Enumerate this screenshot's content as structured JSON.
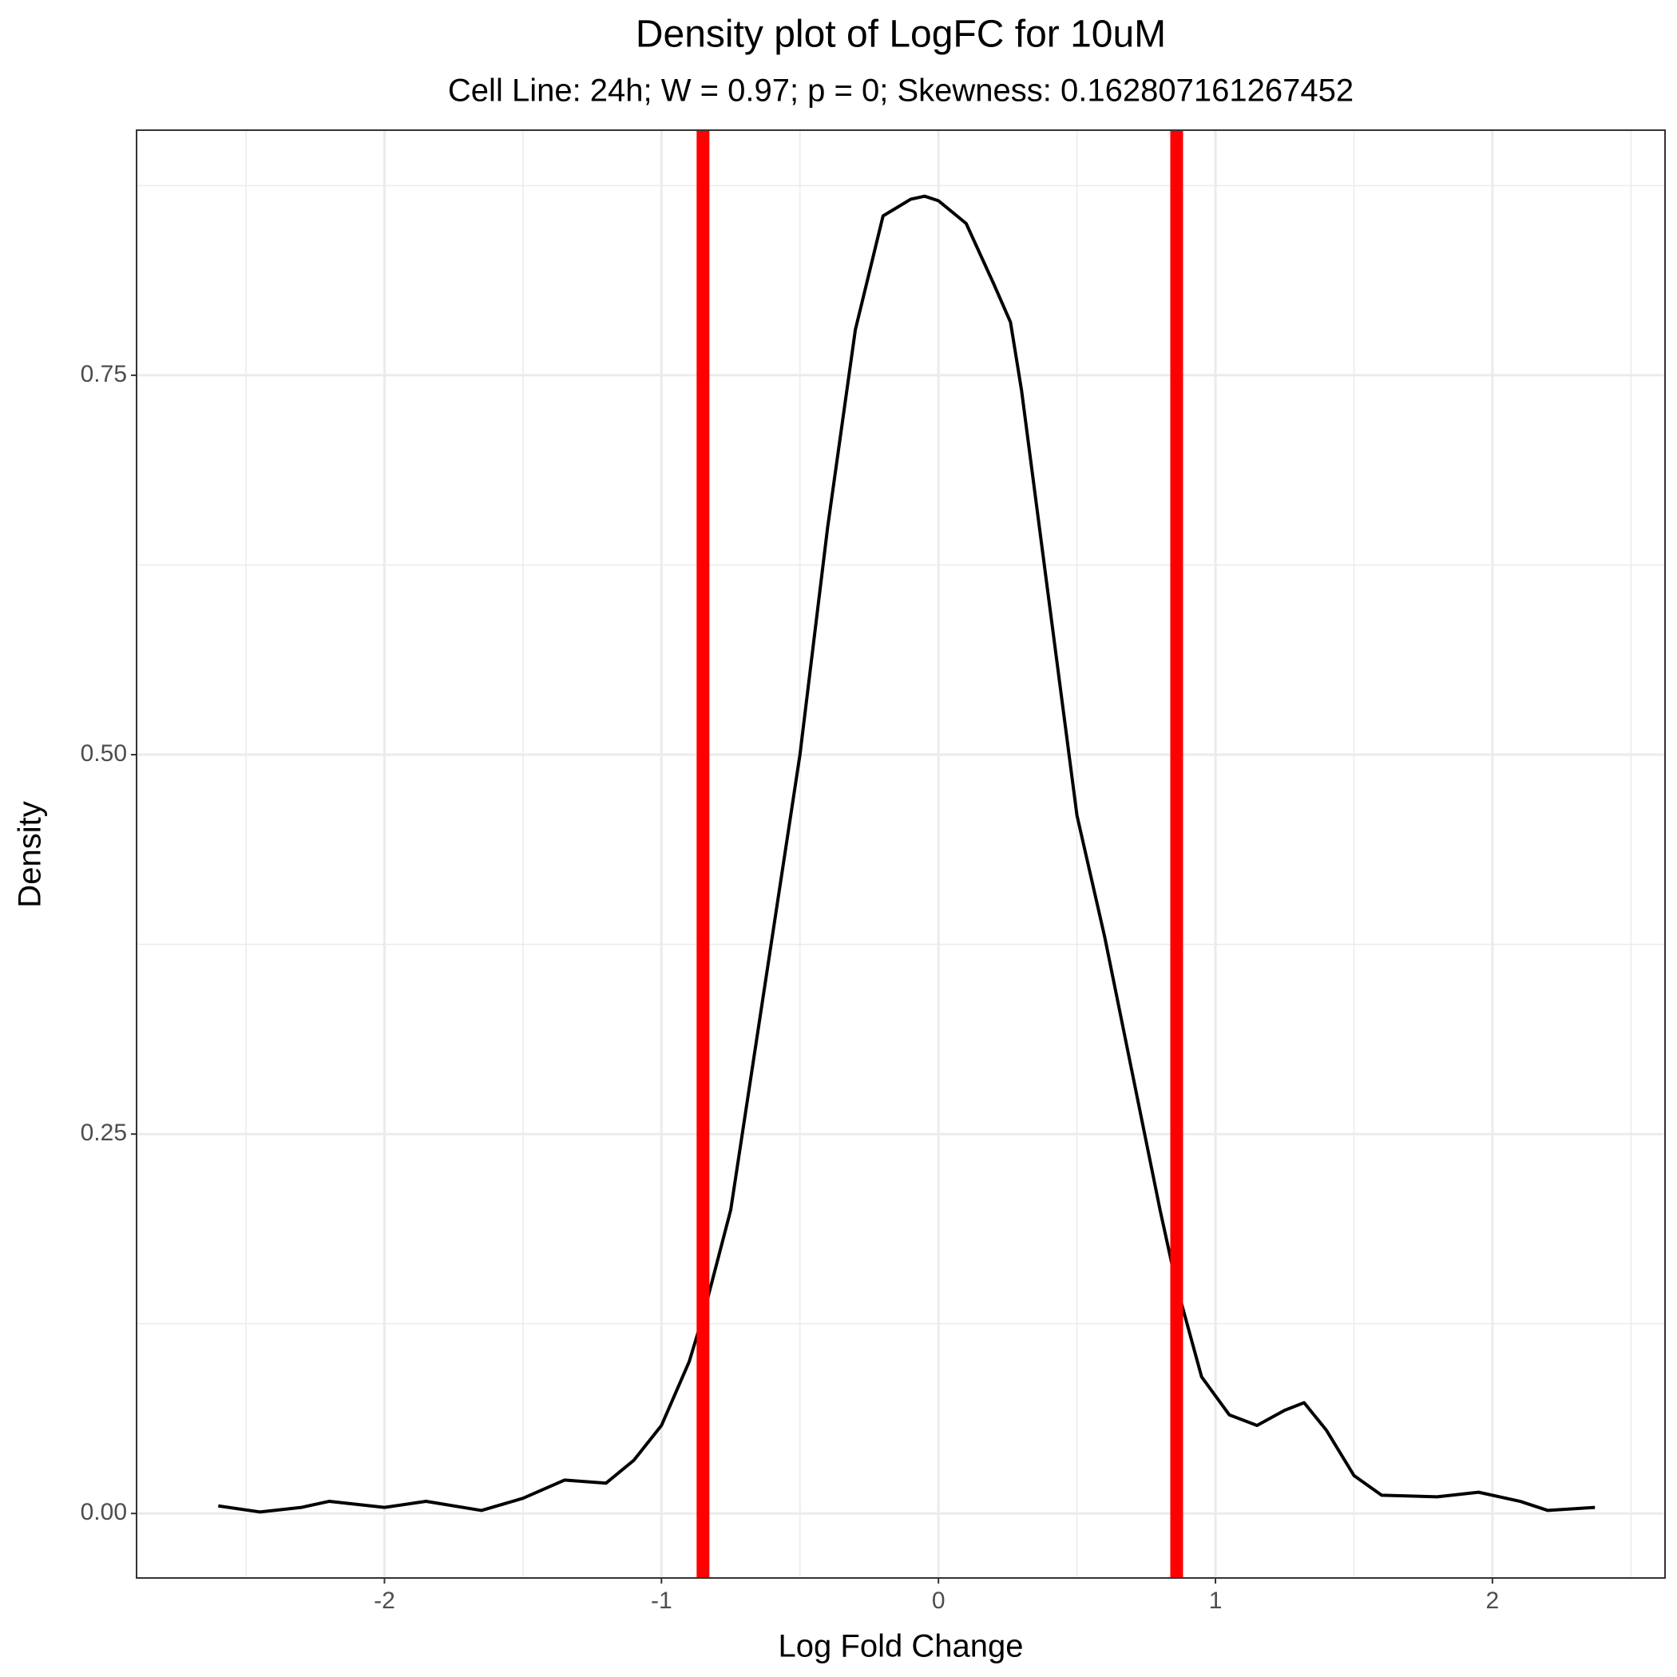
{
  "chart_data": {
    "type": "density",
    "title": "Density plot of LogFC for 10uM",
    "subtitle": "Cell Line: 24h; W = 0.97; p = 0; Skewness: 0.162807161267452",
    "x_label": "Log Fold Change",
    "y_label": "Density",
    "x": [
      -2.6,
      -2.45,
      -2.3,
      -2.2,
      -2.0,
      -1.85,
      -1.65,
      -1.5,
      -1.35,
      -1.2,
      -1.1,
      -1.0,
      -0.9,
      -0.85,
      -0.75,
      -0.7,
      -0.6,
      -0.5,
      -0.4,
      -0.3,
      -0.2,
      -0.1,
      -0.05,
      0.0,
      0.1,
      0.2,
      0.26,
      0.3,
      0.4,
      0.5,
      0.6,
      0.7,
      0.8,
      0.86,
      0.95,
      1.05,
      1.15,
      1.25,
      1.32,
      1.4,
      1.5,
      1.6,
      1.8,
      1.95,
      2.1,
      2.2,
      2.37
    ],
    "series": [
      {
        "color": "#000000",
        "values": [
          0.005,
          0.001,
          0.004,
          0.008,
          0.004,
          0.008,
          0.002,
          0.01,
          0.022,
          0.02,
          0.035,
          0.058,
          0.1,
          0.13,
          0.2,
          0.26,
          0.38,
          0.5,
          0.65,
          0.78,
          0.855,
          0.866,
          0.868,
          0.865,
          0.85,
          0.81,
          0.785,
          0.74,
          0.6,
          0.46,
          0.38,
          0.29,
          0.2,
          0.15,
          0.09,
          0.065,
          0.058,
          0.068,
          0.073,
          0.055,
          0.025,
          0.012,
          0.011,
          0.014,
          0.008,
          0.002,
          0.004
        ]
      }
    ],
    "vlines": {
      "color": "#ff0000",
      "x": [
        -0.85,
        0.86
      ]
    },
    "xlim": [
      -2.895,
      2.623
    ],
    "ylim": [
      -0.0425,
      0.9115
    ],
    "xticks": [
      -2,
      -1,
      0,
      1,
      2
    ],
    "yticks": [
      {
        "value": 0,
        "label": "0.00"
      },
      0.25,
      {
        "value": 0.5,
        "label": "0.50"
      },
      0.75
    ],
    "x_minor_grid": [
      -2.5,
      -1.5,
      -0.5,
      0.5,
      1.5,
      2.5
    ],
    "y_minor_grid": [
      0.125,
      0.375,
      0.625,
      0.875
    ],
    "grid": true
  }
}
